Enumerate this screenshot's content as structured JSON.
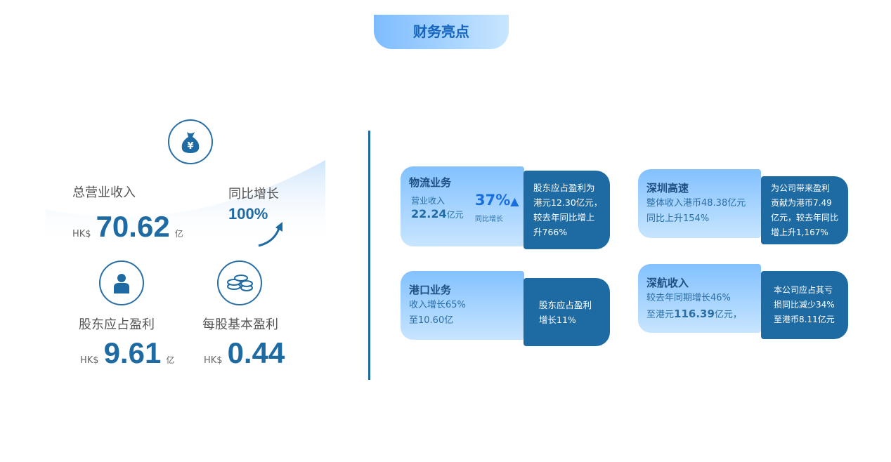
{
  "header": {
    "title": "财务亮点"
  },
  "overview": {
    "revenue": {
      "label": "总营业收入",
      "currency": "HK$",
      "value": "70.62",
      "unit": "亿",
      "icon": "money-bag-yen-icon"
    },
    "growth": {
      "label": "同比增长",
      "value": "100%",
      "icon": "arrow-up-right-icon"
    },
    "profit": {
      "label": "股东应占盈利",
      "currency": "HK$",
      "value": "9.61",
      "unit": "亿",
      "icon": "person-icon"
    },
    "eps": {
      "label": "每股基本盈利",
      "currency": "HK$",
      "value": "0.44",
      "icon": "coins-icon"
    }
  },
  "cards": [
    {
      "title": "物流业务",
      "l1": "营业收入",
      "l2": "22.24",
      "l2u": "亿元",
      "pct": "37%",
      "pct_label": "同比增长",
      "detail": [
        "股东应占盈利为",
        "港元12.30亿元，",
        "较去年同比增上",
        "升766%"
      ]
    },
    {
      "title": "深圳高速",
      "l1": "整体收入港币48.38亿元",
      "l2": "同比上升154%",
      "detail": [
        "为公司带来盈利",
        "贡献为港币7.49",
        "亿元，较去年同比",
        "增上升1,167%"
      ]
    },
    {
      "title": "港口业务",
      "l1": "收入增长65%",
      "l2": "至10.60亿",
      "detail": [
        "股东应占盈利",
        "增长11%"
      ]
    },
    {
      "title": "深航收入",
      "l1": "较去年同期增长46%",
      "l2a": "至港元",
      "l2b": "116.39",
      "l2c": "亿元，",
      "detail": [
        "本公司应占其亏",
        "损同比减少34%",
        "至港币8.11亿元"
      ]
    }
  ],
  "colors": {
    "accent": "#1e6aa3",
    "title_text": "#1565c0",
    "pct": "#1a6fe0"
  }
}
